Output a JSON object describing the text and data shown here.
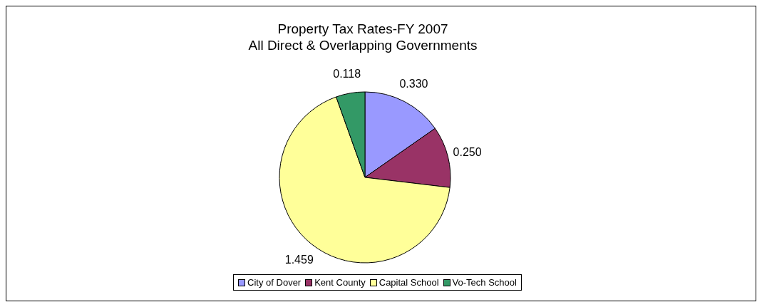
{
  "chart_data": {
    "type": "pie",
    "title": "Property Tax Rates-FY 2007\nAll Direct & Overlapping Governments",
    "categories": [
      "City of Dover",
      "Kent County",
      "Capital School",
      "Vo-Tech School"
    ],
    "values": [
      0.33,
      0.25,
      1.459,
      0.118
    ],
    "value_labels": [
      "0.330",
      "0.250",
      "1.459",
      "0.118"
    ],
    "colors": [
      "#9999ff",
      "#993366",
      "#ffff99",
      "#339966"
    ],
    "legend": "bottom"
  }
}
